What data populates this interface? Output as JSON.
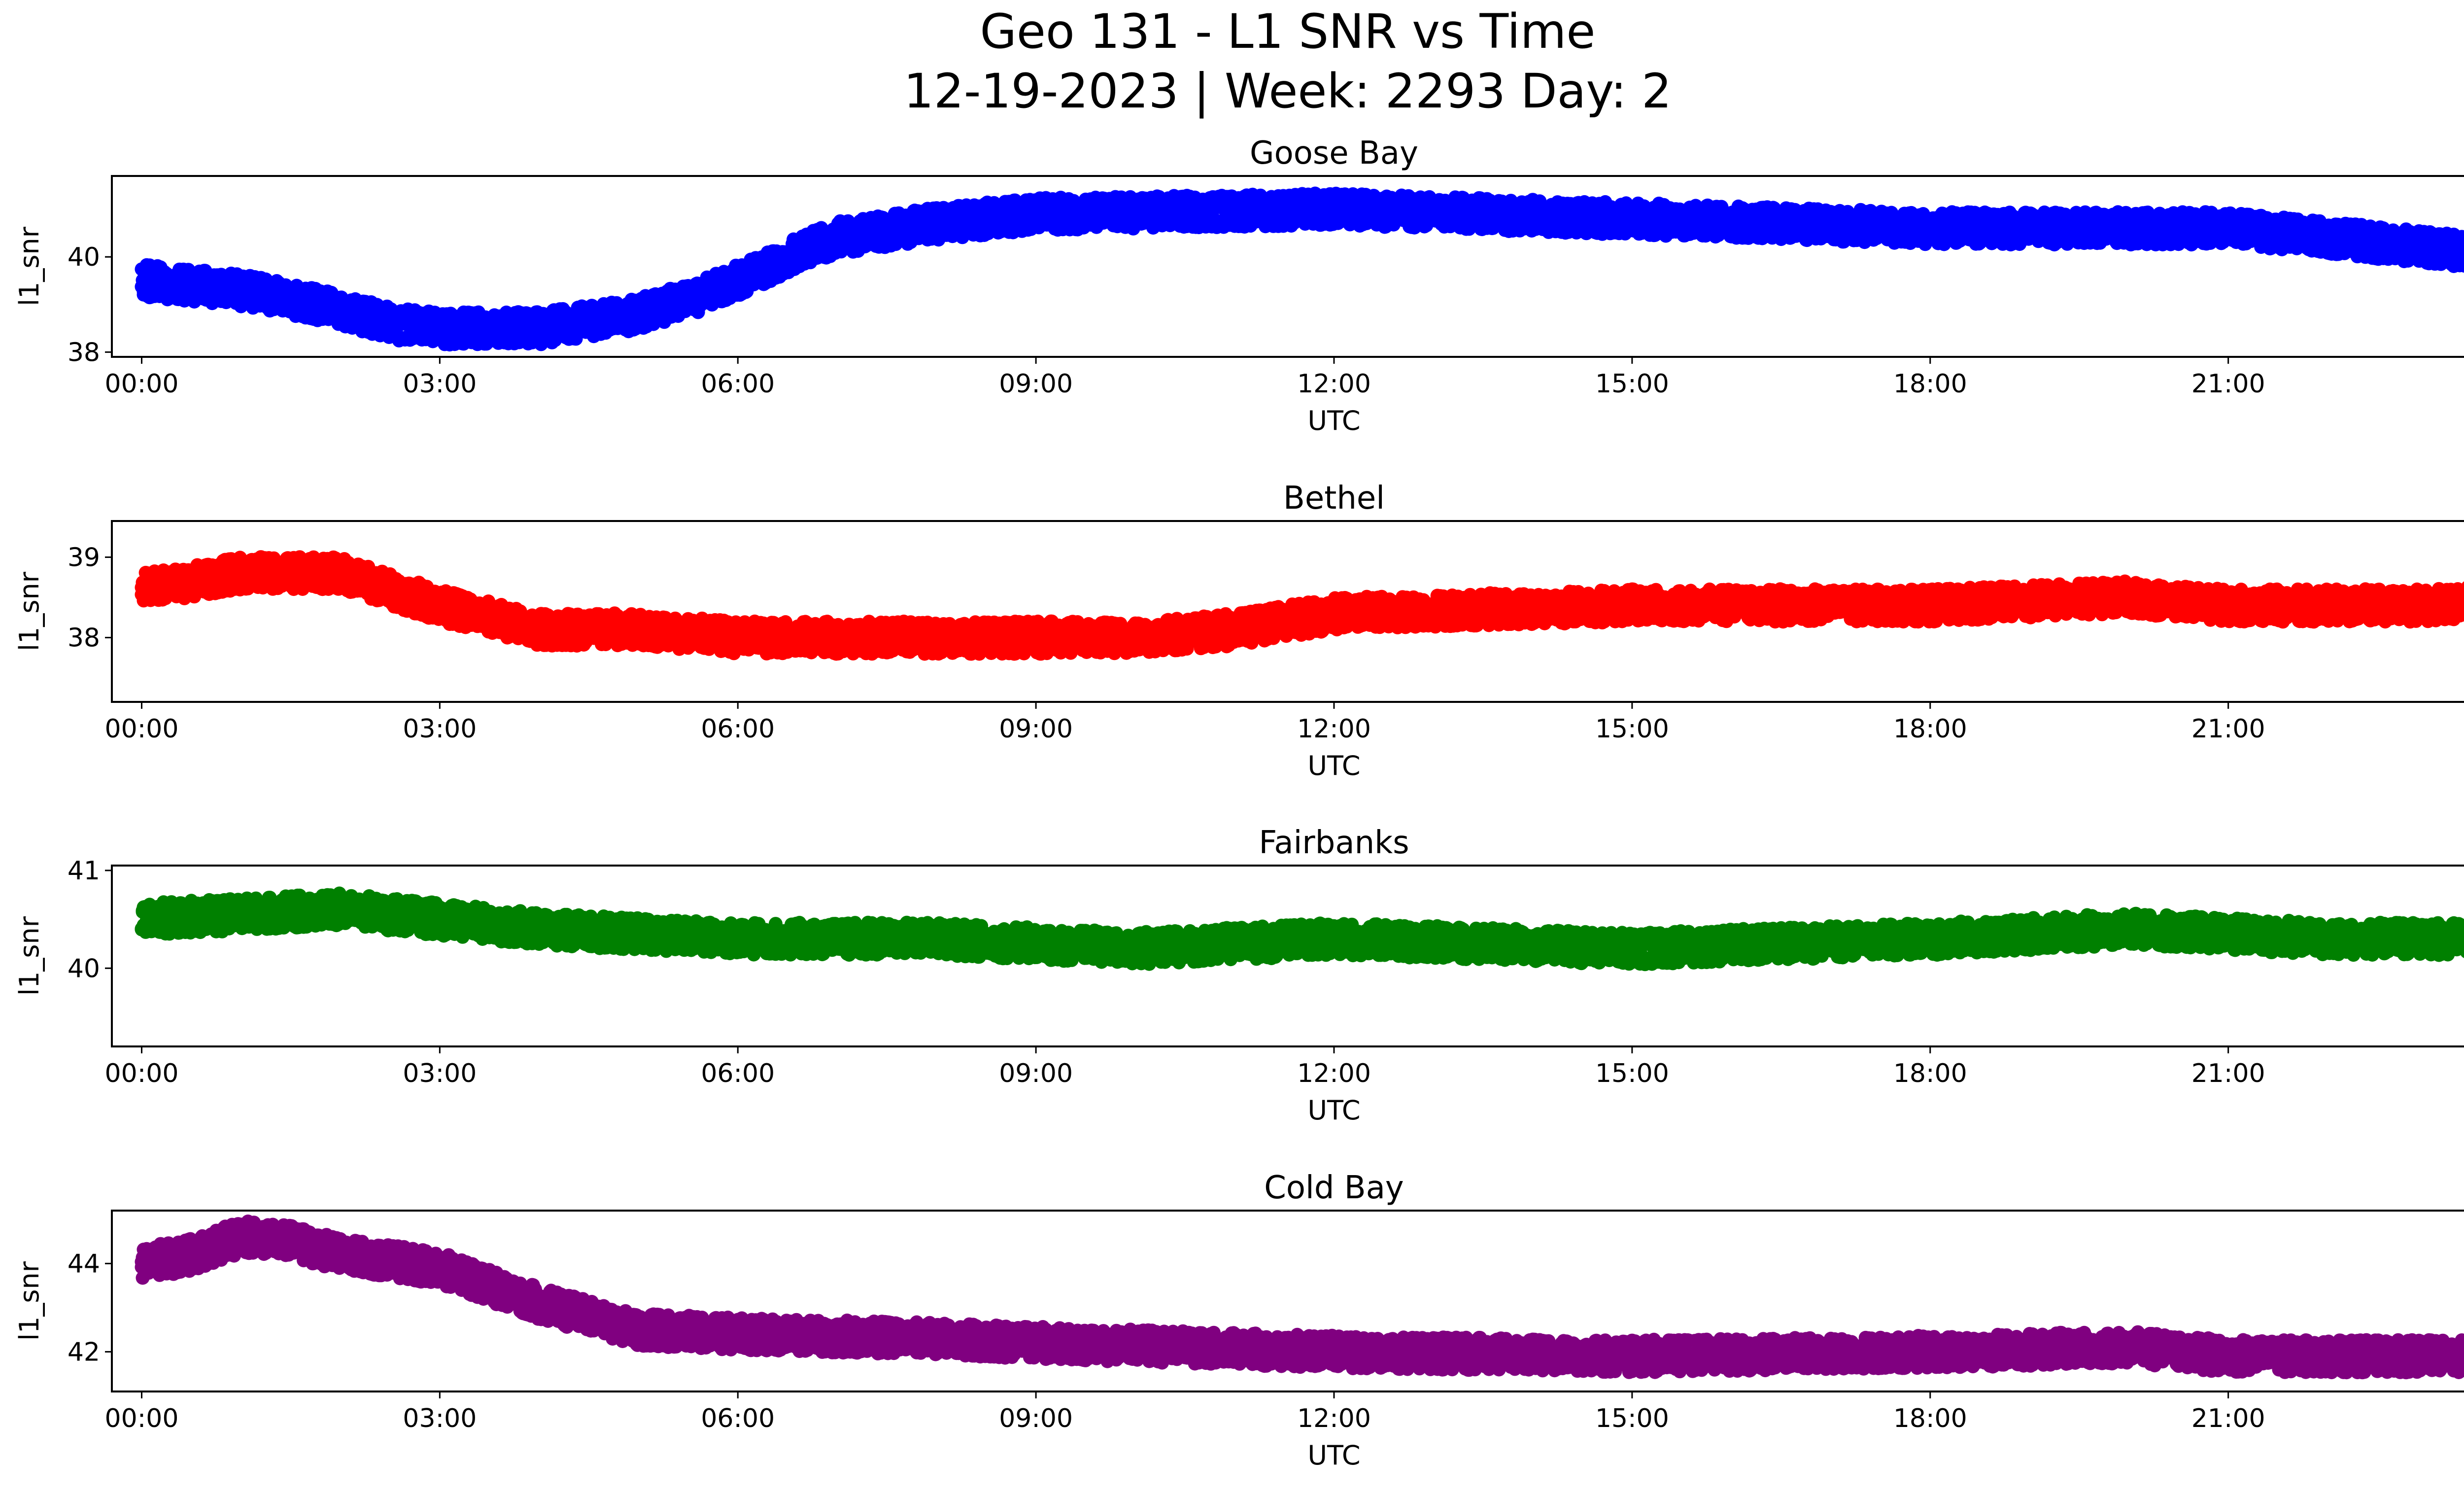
{
  "figure": {
    "title_line1": "Geo 131 - L1 SNR vs Time",
    "title_line2": "12-19-2023 | Week: 2293 Day: 2"
  },
  "chart_data": [
    {
      "type": "scatter",
      "title": "Goose Bay",
      "xlabel": "UTC",
      "ylabel": "l1_snr",
      "color": "#0000ff",
      "xlim": [
        -0.3,
        24.3
      ],
      "ylim": [
        37.9,
        41.7
      ],
      "xticks": [
        "00:00",
        "03:00",
        "06:00",
        "09:00",
        "12:00",
        "15:00",
        "18:00",
        "21:00",
        "00:00"
      ],
      "yticks": [
        38,
        40
      ],
      "trend": {
        "hours": [
          0,
          1,
          2,
          2.5,
          3,
          4,
          5,
          5.5,
          6,
          6.5,
          7,
          8,
          9,
          12,
          15,
          18,
          21,
          22.5,
          24
        ],
        "snr": [
          39.5,
          39.3,
          38.9,
          38.6,
          38.5,
          38.5,
          38.8,
          39.1,
          39.5,
          40.0,
          40.4,
          40.7,
          40.9,
          41.0,
          40.8,
          40.6,
          40.6,
          40.3,
          40.0
        ]
      }
    },
    {
      "type": "scatter",
      "title": "Bethel",
      "xlabel": "UTC",
      "ylabel": "l1_snr",
      "color": "#ff0000",
      "xlim": [
        -0.3,
        24.3
      ],
      "ylim": [
        37.2,
        39.45
      ],
      "xticks": [
        "00:00",
        "03:00",
        "06:00",
        "09:00",
        "12:00",
        "15:00",
        "18:00",
        "21:00",
        "00:00"
      ],
      "yticks": [
        38,
        39
      ],
      "trend": {
        "hours": [
          0,
          1,
          2,
          3,
          4,
          5,
          6,
          8,
          9,
          10,
          11,
          12,
          15,
          18,
          20,
          21,
          22,
          23,
          24
        ],
        "snr": [
          38.6,
          38.8,
          38.8,
          38.4,
          38.1,
          38.1,
          38.0,
          38.0,
          38.0,
          38.0,
          38.1,
          38.3,
          38.4,
          38.4,
          38.5,
          38.4,
          38.4,
          38.4,
          38.5
        ]
      }
    },
    {
      "type": "scatter",
      "title": "Fairbanks",
      "xlabel": "UTC",
      "ylabel": "l1_snr",
      "color": "#008000",
      "xlim": [
        -0.3,
        24.3
      ],
      "ylim": [
        39.2,
        41.05
      ],
      "xticks": [
        "00:00",
        "03:00",
        "06:00",
        "09:00",
        "12:00",
        "15:00",
        "18:00",
        "21:00",
        "00:00"
      ],
      "yticks": [
        40,
        41
      ],
      "trend": {
        "hours": [
          0,
          2,
          4,
          6,
          8,
          10,
          12,
          15,
          18,
          20,
          22,
          24
        ],
        "snr": [
          40.5,
          40.6,
          40.4,
          40.3,
          40.3,
          40.2,
          40.3,
          40.2,
          40.3,
          40.4,
          40.3,
          40.3
        ]
      }
    },
    {
      "type": "scatter",
      "title": "Cold Bay",
      "xlabel": "UTC",
      "ylabel": "l1_snr",
      "color": "#800080",
      "xlim": [
        -0.3,
        24.3
      ],
      "ylim": [
        41.1,
        45.2
      ],
      "xticks": [
        "00:00",
        "03:00",
        "06:00",
        "09:00",
        "12:00",
        "15:00",
        "18:00",
        "21:00",
        "00:00"
      ],
      "yticks": [
        42,
        44
      ],
      "trend": {
        "hours": [
          0,
          0.5,
          1,
          1.5,
          2,
          3,
          3.5,
          4,
          4.5,
          5,
          6,
          8,
          9,
          12,
          15,
          18,
          20,
          21,
          24
        ],
        "snr": [
          44.0,
          44.2,
          44.6,
          44.5,
          44.2,
          43.9,
          43.5,
          43.1,
          42.8,
          42.5,
          42.4,
          42.3,
          42.2,
          42.0,
          41.9,
          42.0,
          42.1,
          41.9,
          41.9
        ]
      }
    }
  ]
}
